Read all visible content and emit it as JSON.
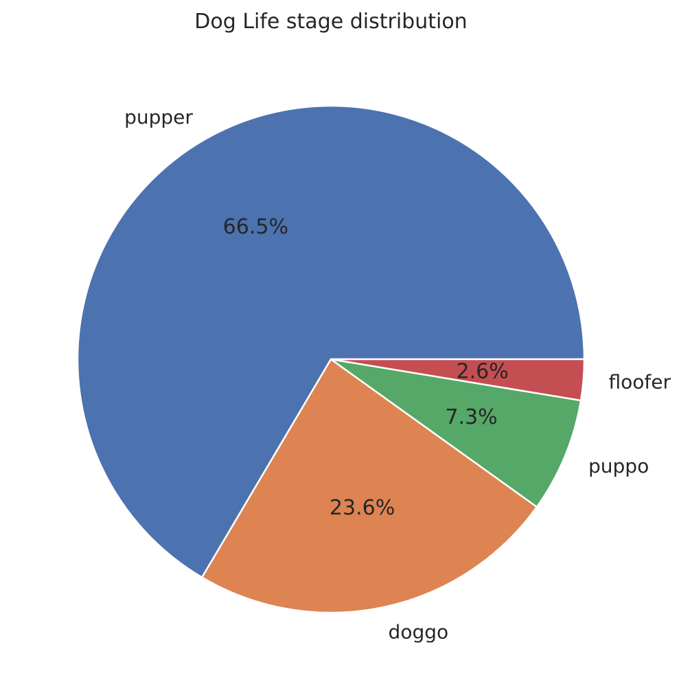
{
  "chart_data": {
    "type": "pie",
    "title": "Dog Life stage distribution",
    "start_angle_deg": 0,
    "direction": "counterclockwise",
    "slices": [
      {
        "label": "pupper",
        "value": 66.5,
        "pct_label": "66.5%",
        "color": "#4c72b0"
      },
      {
        "label": "doggo",
        "value": 23.6,
        "pct_label": "23.6%",
        "color": "#dd8452"
      },
      {
        "label": "puppo",
        "value": 7.3,
        "pct_label": "7.3%",
        "color": "#55a868"
      },
      {
        "label": "floofer",
        "value": 2.6,
        "pct_label": "2.6%",
        "color": "#c44e52"
      }
    ]
  }
}
